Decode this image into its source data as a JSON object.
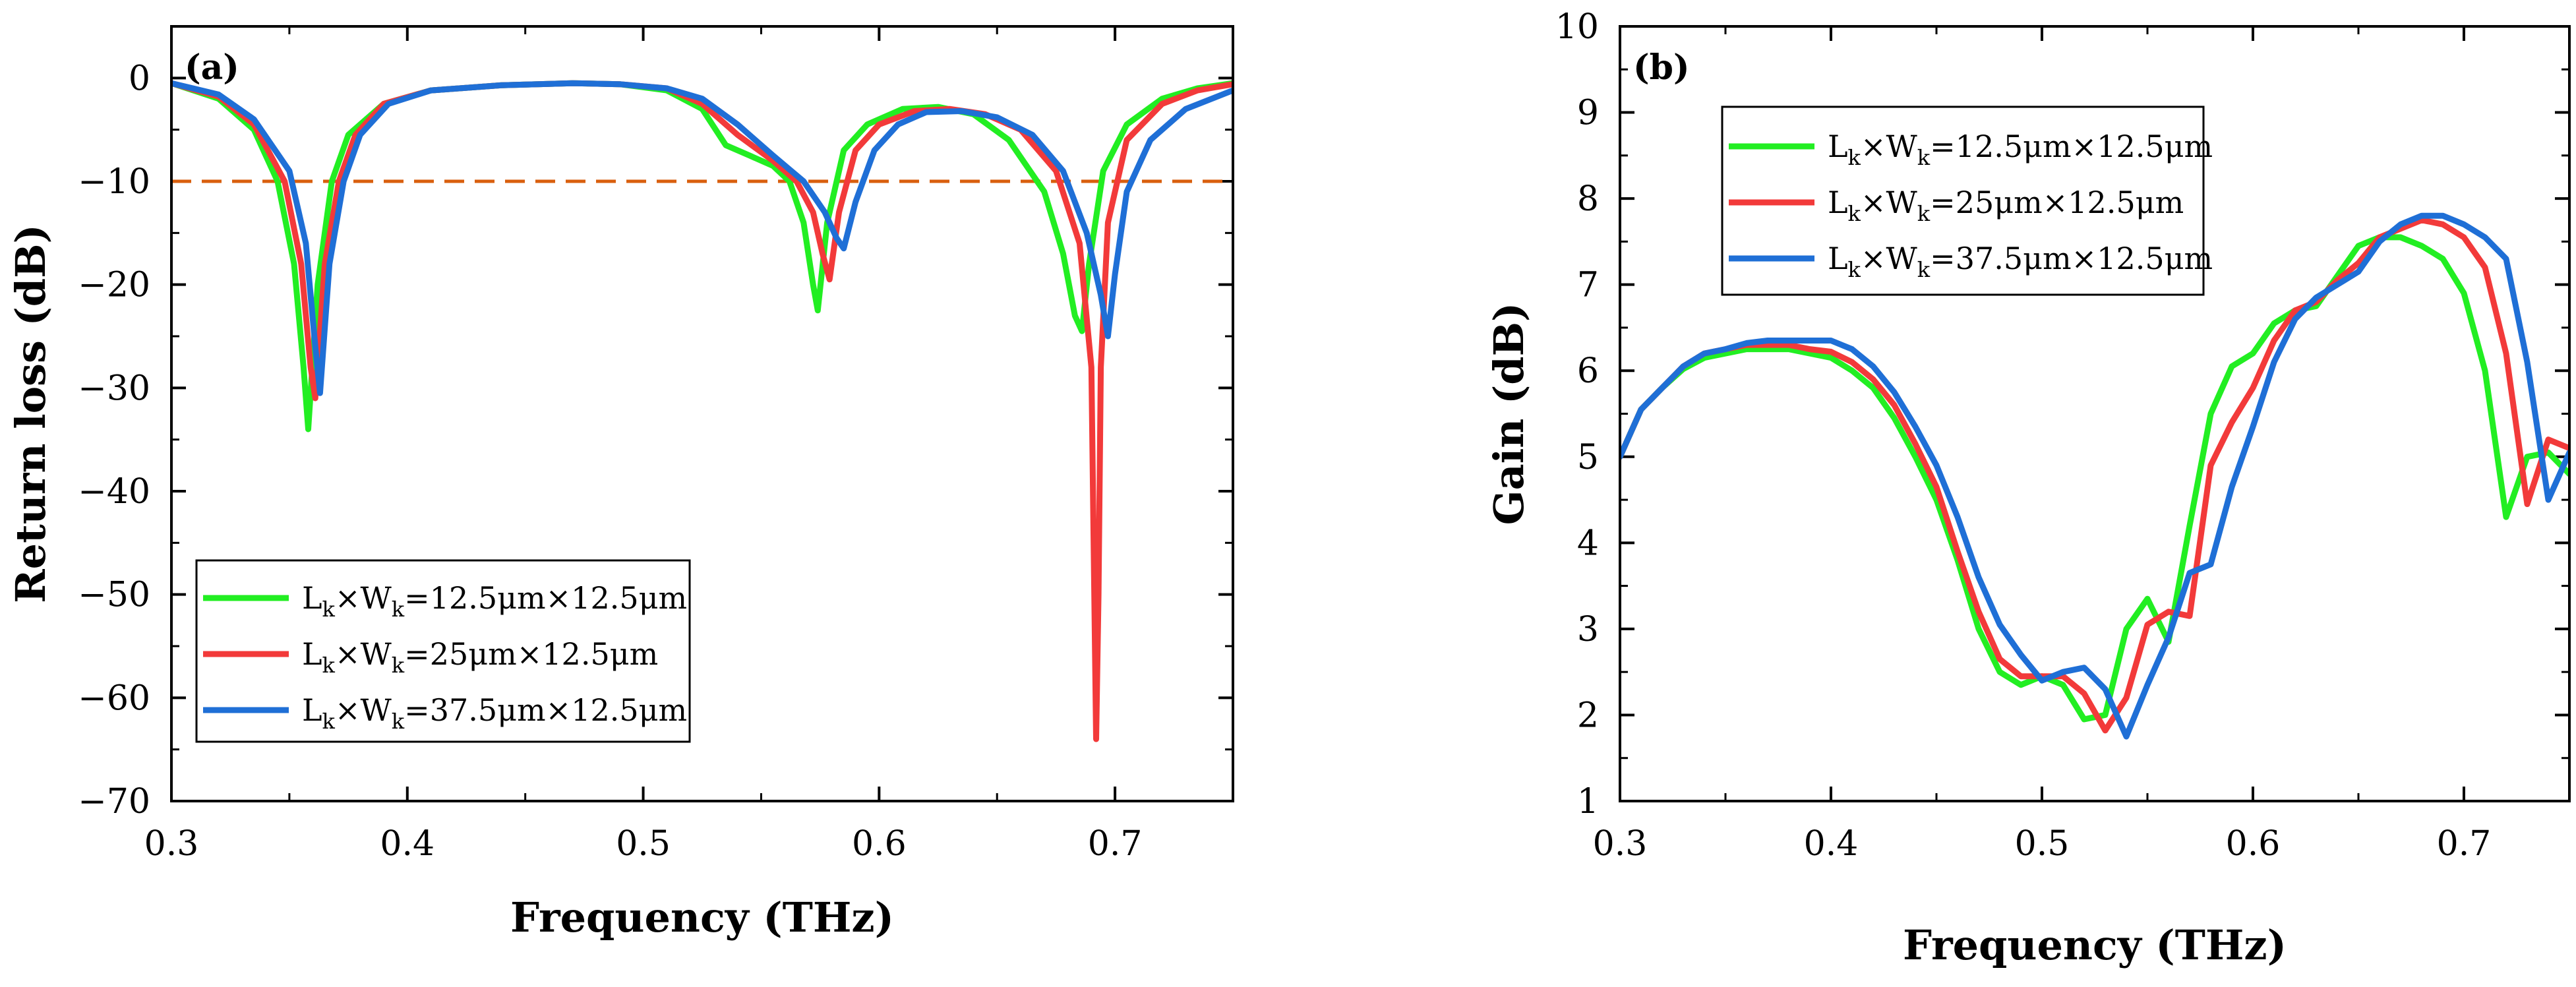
{
  "chart_data": [
    {
      "panel": "(a)",
      "type": "line",
      "xlabel": "Frequency (THz)",
      "ylabel": "Return loss (dB)",
      "xlim": [
        0.3,
        0.75
      ],
      "ylim": [
        -70,
        5
      ],
      "xticks": [
        0.3,
        0.4,
        0.5,
        0.6,
        0.7
      ],
      "xtick_labels": [
        "0.3",
        "0.4",
        "0.5",
        "0.6",
        "0.7"
      ],
      "yticks": [
        0,
        -10,
        -20,
        -30,
        -40,
        -50,
        -60,
        -70
      ],
      "ytick_labels": [
        "0",
        "−10",
        "−20",
        "−30",
        "−40",
        "−50",
        "−60",
        "−70"
      ],
      "reference_line": {
        "y": -10,
        "color": "#d95f0e",
        "style": "dashed"
      },
      "legend_position": "lower-left",
      "series": [
        {
          "name": "Lk×Wk=12.5μm×12.5μm",
          "legend": {
            "L": "L",
            "L_sub": "k",
            "x": "×W",
            "W_sub": "k",
            "rest": "=12.5μm×12.5μm"
          },
          "color": "#22ee22",
          "x": [
            0.3,
            0.32,
            0.335,
            0.345,
            0.352,
            0.356,
            0.358,
            0.362,
            0.368,
            0.375,
            0.39,
            0.41,
            0.44,
            0.47,
            0.49,
            0.51,
            0.525,
            0.535,
            0.545,
            0.555,
            0.562,
            0.568,
            0.572,
            0.574,
            0.578,
            0.585,
            0.595,
            0.61,
            0.625,
            0.64,
            0.655,
            0.67,
            0.678,
            0.683,
            0.686,
            0.689,
            0.695,
            0.705,
            0.72,
            0.735,
            0.75
          ],
          "y": [
            -0.5,
            -2,
            -5,
            -10,
            -18,
            -28,
            -34,
            -20,
            -10,
            -5.5,
            -2.5,
            -1.2,
            -0.7,
            -0.5,
            -0.6,
            -1.2,
            -3,
            -6.5,
            -7.5,
            -8.5,
            -10,
            -14,
            -20,
            -22.5,
            -14,
            -7,
            -4.5,
            -3,
            -2.8,
            -3.5,
            -6,
            -11,
            -17,
            -23,
            -24.5,
            -18,
            -9,
            -4.5,
            -2,
            -1,
            -0.5
          ]
        },
        {
          "name": "Lk×Wk=25μm×12.5μm",
          "legend": {
            "L": "L",
            "L_sub": "k",
            "x": "×W",
            "W_sub": "k",
            "rest": "=25μm×12.5μm"
          },
          "color": "#f23a3a",
          "x": [
            0.3,
            0.32,
            0.335,
            0.348,
            0.355,
            0.359,
            0.361,
            0.365,
            0.371,
            0.378,
            0.39,
            0.41,
            0.44,
            0.47,
            0.49,
            0.51,
            0.525,
            0.54,
            0.555,
            0.565,
            0.572,
            0.576,
            0.579,
            0.583,
            0.59,
            0.6,
            0.615,
            0.63,
            0.645,
            0.66,
            0.675,
            0.685,
            0.69,
            0.692,
            0.693,
            0.694,
            0.697,
            0.705,
            0.72,
            0.735,
            0.75
          ],
          "y": [
            -0.5,
            -1.8,
            -4.5,
            -10,
            -18,
            -28,
            -31,
            -18,
            -10,
            -5.5,
            -2.5,
            -1.2,
            -0.7,
            -0.5,
            -0.6,
            -1,
            -2.5,
            -5.5,
            -8,
            -10,
            -13,
            -17,
            -19.5,
            -13,
            -7,
            -4.5,
            -3.2,
            -3,
            -3.5,
            -5,
            -9,
            -16,
            -28,
            -64,
            -50,
            -28,
            -14,
            -6,
            -2.5,
            -1.2,
            -0.6
          ]
        },
        {
          "name": "Lk×Wk=37.5μm×12.5μm",
          "legend": {
            "L": "L",
            "L_sub": "k",
            "x": "×W",
            "W_sub": "k",
            "rest": "=37.5μm×12.5μm"
          },
          "color": "#1f6fd6",
          "x": [
            0.3,
            0.32,
            0.335,
            0.35,
            0.357,
            0.361,
            0.363,
            0.367,
            0.373,
            0.38,
            0.392,
            0.41,
            0.44,
            0.47,
            0.49,
            0.51,
            0.525,
            0.54,
            0.555,
            0.568,
            0.577,
            0.582,
            0.585,
            0.59,
            0.598,
            0.608,
            0.62,
            0.635,
            0.65,
            0.665,
            0.678,
            0.688,
            0.694,
            0.697,
            0.7,
            0.705,
            0.715,
            0.73,
            0.75
          ],
          "y": [
            -0.5,
            -1.6,
            -4,
            -9,
            -16,
            -26,
            -30.5,
            -18,
            -10,
            -5.5,
            -2.5,
            -1.2,
            -0.7,
            -0.5,
            -0.6,
            -1,
            -2,
            -4.5,
            -7.5,
            -10,
            -13,
            -15.5,
            -16.5,
            -12,
            -7,
            -4.5,
            -3.3,
            -3.2,
            -3.8,
            -5.5,
            -9,
            -15,
            -21,
            -25,
            -19,
            -11,
            -6,
            -3,
            -1.2
          ]
        }
      ]
    },
    {
      "panel": "(b)",
      "type": "line",
      "xlabel": "Frequency (THz)",
      "ylabel": "Gain (dB)",
      "xlim": [
        0.3,
        0.75
      ],
      "ylim": [
        1,
        10
      ],
      "xticks": [
        0.3,
        0.4,
        0.5,
        0.6,
        0.7
      ],
      "xtick_labels": [
        "0.3",
        "0.4",
        "0.5",
        "0.6",
        "0.7"
      ],
      "yticks": [
        1,
        2,
        3,
        4,
        5,
        6,
        7,
        8,
        9,
        10
      ],
      "ytick_labels": [
        "1",
        "2",
        "3",
        "4",
        "5",
        "6",
        "7",
        "8",
        "9",
        "10"
      ],
      "legend_position": "top-left",
      "series": [
        {
          "name": "Lk×Wk=12.5μm×12.5μm",
          "legend": {
            "L": "L",
            "L_sub": "k",
            "x": "×W",
            "W_sub": "k",
            "rest": "=12.5μm×12.5μm"
          },
          "color": "#22ee22",
          "x": [
            0.3,
            0.31,
            0.32,
            0.33,
            0.34,
            0.35,
            0.36,
            0.37,
            0.38,
            0.39,
            0.4,
            0.41,
            0.42,
            0.43,
            0.44,
            0.45,
            0.46,
            0.47,
            0.48,
            0.49,
            0.5,
            0.51,
            0.52,
            0.53,
            0.54,
            0.55,
            0.56,
            0.57,
            0.58,
            0.59,
            0.6,
            0.61,
            0.62,
            0.63,
            0.64,
            0.65,
            0.66,
            0.67,
            0.68,
            0.69,
            0.7,
            0.71,
            0.72,
            0.73,
            0.74,
            0.75
          ],
          "y": [
            5.0,
            5.55,
            5.8,
            6.02,
            6.15,
            6.2,
            6.25,
            6.25,
            6.25,
            6.2,
            6.15,
            6.0,
            5.8,
            5.45,
            5.0,
            4.5,
            3.8,
            3.0,
            2.5,
            2.35,
            2.45,
            2.35,
            1.95,
            2.0,
            3.0,
            3.35,
            2.85,
            4.2,
            5.5,
            6.05,
            6.2,
            6.55,
            6.7,
            6.75,
            7.1,
            7.45,
            7.55,
            7.55,
            7.45,
            7.3,
            6.9,
            6.0,
            4.3,
            5.0,
            5.05,
            4.8
          ]
        },
        {
          "name": "Lk×Wk=25μm×12.5μm",
          "legend": {
            "L": "L",
            "L_sub": "k",
            "x": "×W",
            "W_sub": "k",
            "rest": "=25μm×12.5μm"
          },
          "color": "#f23a3a",
          "x": [
            0.3,
            0.31,
            0.32,
            0.33,
            0.34,
            0.35,
            0.36,
            0.37,
            0.38,
            0.39,
            0.4,
            0.41,
            0.42,
            0.43,
            0.44,
            0.45,
            0.46,
            0.47,
            0.48,
            0.49,
            0.5,
            0.51,
            0.52,
            0.53,
            0.54,
            0.55,
            0.56,
            0.57,
            0.58,
            0.59,
            0.6,
            0.61,
            0.62,
            0.63,
            0.64,
            0.65,
            0.66,
            0.67,
            0.68,
            0.69,
            0.7,
            0.71,
            0.72,
            0.73,
            0.74,
            0.75
          ],
          "y": [
            5.0,
            5.55,
            5.8,
            6.05,
            6.2,
            6.25,
            6.3,
            6.3,
            6.3,
            6.25,
            6.22,
            6.1,
            5.9,
            5.6,
            5.15,
            4.65,
            3.9,
            3.2,
            2.65,
            2.45,
            2.45,
            2.45,
            2.25,
            1.82,
            2.2,
            3.05,
            3.2,
            3.15,
            4.9,
            5.4,
            5.8,
            6.35,
            6.7,
            6.8,
            7.05,
            7.25,
            7.55,
            7.65,
            7.75,
            7.7,
            7.55,
            7.2,
            6.2,
            4.45,
            5.2,
            5.1
          ]
        },
        {
          "name": "Lk×Wk=37.5μm×12.5μm",
          "legend": {
            "L": "L",
            "L_sub": "k",
            "x": "×W",
            "W_sub": "k",
            "rest": "=37.5μm×12.5μm"
          },
          "color": "#1f6fd6",
          "x": [
            0.3,
            0.31,
            0.32,
            0.33,
            0.34,
            0.35,
            0.36,
            0.37,
            0.38,
            0.39,
            0.4,
            0.41,
            0.42,
            0.43,
            0.44,
            0.45,
            0.46,
            0.47,
            0.48,
            0.49,
            0.5,
            0.51,
            0.52,
            0.53,
            0.54,
            0.55,
            0.56,
            0.57,
            0.58,
            0.59,
            0.6,
            0.61,
            0.62,
            0.63,
            0.64,
            0.65,
            0.66,
            0.67,
            0.68,
            0.69,
            0.7,
            0.71,
            0.72,
            0.73,
            0.74,
            0.75
          ],
          "y": [
            5.0,
            5.55,
            5.8,
            6.05,
            6.2,
            6.25,
            6.32,
            6.35,
            6.35,
            6.35,
            6.35,
            6.25,
            6.05,
            5.75,
            5.35,
            4.9,
            4.3,
            3.6,
            3.05,
            2.7,
            2.4,
            2.5,
            2.55,
            2.3,
            1.75,
            2.35,
            2.9,
            3.65,
            3.75,
            4.65,
            5.35,
            6.1,
            6.6,
            6.85,
            7.0,
            7.15,
            7.5,
            7.7,
            7.8,
            7.8,
            7.7,
            7.55,
            7.3,
            6.1,
            4.5,
            5.05
          ]
        }
      ]
    }
  ]
}
